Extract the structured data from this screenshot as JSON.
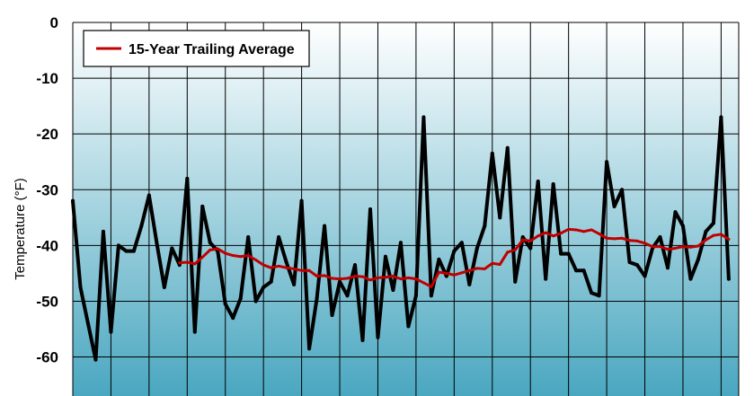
{
  "chart_data": {
    "type": "line",
    "title": "",
    "xlabel": "",
    "ylabel": "Temperature (°F)",
    "ylim": [
      -67,
      0
    ],
    "yticks": [
      0,
      -10,
      -20,
      -30,
      -40,
      -50,
      -60
    ],
    "grid": true,
    "legend": {
      "placement": "top-left",
      "entries": [
        "15-Year Trailing Average"
      ]
    },
    "colors": {
      "annual": "#000000",
      "average": "#c00000",
      "background_top": "#ffffff",
      "background_bottom": "#4aa7c0",
      "grid": "#000000"
    },
    "series": [
      {
        "values": [
          -32,
          -47.5,
          -54,
          -60.5,
          -37.5,
          -55.5,
          -40,
          -41,
          -41,
          -36.5,
          -31,
          -39.5,
          -47.5,
          -40.5,
          -43.5,
          -28,
          -55.5,
          -33,
          -39.5,
          -41,
          -50.5,
          -53,
          -49.5,
          -38.5,
          -50,
          -47.5,
          -46.5,
          -38.5,
          -43,
          -47,
          -32,
          -58.5,
          -49.5,
          -36.5,
          -52.5,
          -46.5,
          -49,
          -43.5,
          -57,
          -33.5,
          -56.5,
          -42,
          -48,
          -39.5,
          -54.5,
          -49,
          -17,
          -49,
          -42.5,
          -45.5,
          -41,
          -39.5,
          -47,
          -40.5,
          -36.5,
          -23.5,
          -35,
          -22.5,
          -46.5,
          -38.5,
          -40.5,
          -28.5,
          -46,
          -29,
          -41.5,
          -41.5,
          -44.5,
          -44.5,
          -48.5,
          -49,
          -25,
          -33,
          -30,
          -43,
          -43.5,
          -45.5,
          -40.5,
          -38.5,
          -44,
          -34,
          -36.5,
          -46,
          -42.5,
          -37.5,
          -36,
          -17,
          -46
        ]
      },
      {
        "name": "15-Year Trailing Average",
        "values": [
          null,
          null,
          null,
          null,
          null,
          null,
          null,
          null,
          null,
          null,
          null,
          null,
          null,
          null,
          -43.1,
          -43,
          -43.3,
          -42.1,
          -40.8,
          -40.6,
          -41.4,
          -41.8,
          -42,
          -41.8,
          -42.6,
          -43.5,
          -44,
          -43.7,
          -44,
          -44.2,
          -44.5,
          -44.5,
          -45.5,
          -45.4,
          -45.9,
          -46,
          -45.9,
          -45.5,
          -45.6,
          -46.2,
          -45.8,
          -45.7,
          -45.5,
          -46,
          -45.8,
          -46,
          -46.7,
          -47.4,
          -44.8,
          -45,
          -45.3,
          -44.9,
          -44.5,
          -44.1,
          -44.2,
          -43.2,
          -43.4,
          -41.2,
          -40.8,
          -39,
          -39.2,
          -38.3,
          -37.7,
          -38.3,
          -37.8,
          -37.1,
          -37.2,
          -37.5,
          -37.2,
          -37.9,
          -38.7,
          -38.8,
          -38.7,
          -39.1,
          -39.2,
          -39.6,
          -40.2,
          -40.2,
          -40.7,
          -40.5,
          -40.2,
          -40.3,
          -40.1,
          -39,
          -38.2,
          -38,
          -38.9
        ]
      }
    ]
  }
}
